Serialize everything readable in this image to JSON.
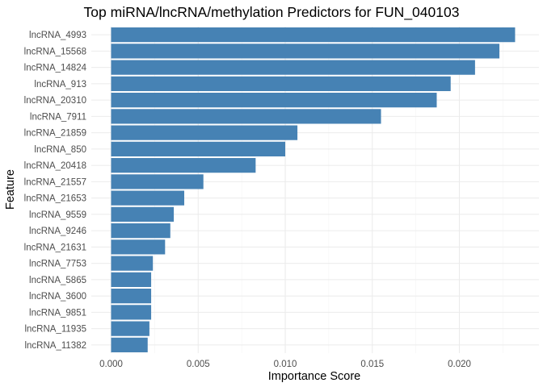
{
  "chart_data": {
    "type": "bar",
    "orientation": "horizontal",
    "title": "Top miRNA/lncRNA/methylation Predictors for FUN_040103",
    "xlabel": "Importance Score",
    "ylabel": "Feature",
    "xlim": [
      0,
      0.0234
    ],
    "x_ticks": [
      0.0,
      0.005,
      0.01,
      0.015,
      0.02
    ],
    "x_tick_labels": [
      "0.000",
      "0.005",
      "0.010",
      "0.015",
      "0.020"
    ],
    "grid": true,
    "legend": "none",
    "bar_color": "#4682b4",
    "categories": [
      "lncRNA_4993",
      "lncRNA_15568",
      "lncRNA_14824",
      "lncRNA_913",
      "lncRNA_20310",
      "lncRNA_7911",
      "lncRNA_21859",
      "lncRNA_850",
      "lncRNA_20418",
      "lncRNA_21557",
      "lncRNA_21653",
      "lncRNA_9559",
      "lncRNA_9246",
      "lncRNA_21631",
      "lncRNA_7753",
      "lncRNA_5865",
      "lncRNA_3600",
      "lncRNA_9851",
      "lncRNA_11935",
      "lncRNA_11382"
    ],
    "values": [
      0.0232,
      0.0223,
      0.0209,
      0.0195,
      0.0187,
      0.0155,
      0.0107,
      0.01,
      0.0083,
      0.0053,
      0.0042,
      0.0036,
      0.0034,
      0.0031,
      0.0024,
      0.0023,
      0.0023,
      0.0023,
      0.0022,
      0.0021
    ]
  }
}
